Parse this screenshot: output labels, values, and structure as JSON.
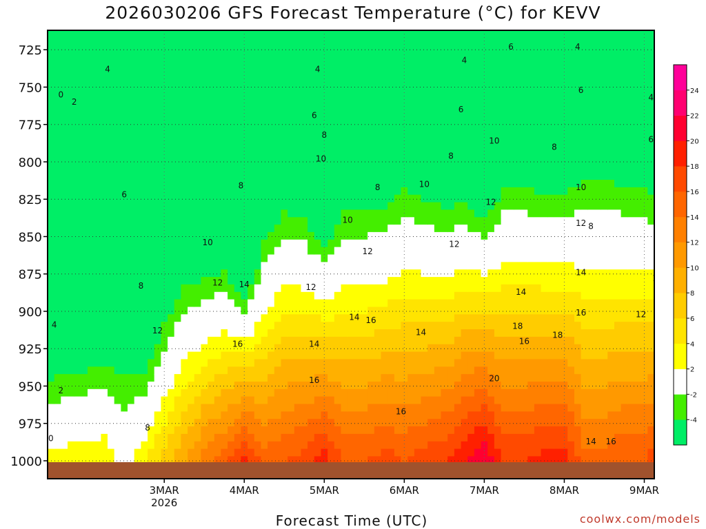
{
  "title": "2026030206 GFS Forecast Temperature (°C) for KEVV",
  "xlabel": "Forecast Time (UTC)",
  "credit": "coolwx.com/models",
  "chart_data": {
    "type": "heatmap",
    "title": "2026030206 GFS Forecast Temperature (°C) for KEVV",
    "xlabel": "Forecast Time (UTC)",
    "ylabel": "Pressure (hPa)",
    "xlim_hours": [
      -17,
      165
    ],
    "ylim": [
      1012,
      712
    ],
    "y_ticks": [
      725,
      750,
      775,
      800,
      825,
      850,
      875,
      900,
      925,
      950,
      975,
      1000
    ],
    "x_ticks": [
      {
        "label": "3MAR",
        "sub": "2026",
        "hour": 18
      },
      {
        "label": "4MAR",
        "sub": "",
        "hour": 42
      },
      {
        "label": "5MAR",
        "sub": "",
        "hour": 66
      },
      {
        "label": "6MAR",
        "sub": "",
        "hour": 90
      },
      {
        "label": "7MAR",
        "sub": "",
        "hour": 114
      },
      {
        "label": "8MAR",
        "sub": "",
        "hour": 138
      },
      {
        "label": "9MAR",
        "sub": "",
        "hour": 162
      }
    ],
    "colorbar": {
      "levels": [
        -6,
        -4,
        -2,
        2,
        4,
        6,
        8,
        10,
        12,
        14,
        16,
        18,
        20,
        22,
        24,
        26
      ],
      "labels": [
        "-4",
        "-2",
        "2",
        "4",
        "6",
        "8",
        "10",
        "12",
        "14",
        "16",
        "18",
        "20",
        "22",
        "24"
      ],
      "colors": [
        "#00ee66",
        "#44ee00",
        "#ffffff",
        "#ffff00",
        "#ffe400",
        "#ffcc00",
        "#ffb000",
        "#ff9900",
        "#ff8000",
        "#ff6600",
        "#ff4a00",
        "#ff2000",
        "#ff0030",
        "#ff0070",
        "#ff0099"
      ]
    },
    "surface_pressure_hpa": 1000,
    "profiles": [
      {
        "hour": -17,
        "surface": 3,
        "lapse": 1.3
      },
      {
        "hour": 0,
        "surface": 4,
        "lapse": 1.25
      },
      {
        "hour": 6,
        "surface": 1,
        "lapse": 0.9
      },
      {
        "hour": 12,
        "surface": 4,
        "lapse": 1.4
      },
      {
        "hour": 18,
        "surface": 7,
        "lapse": 1.2
      },
      {
        "hour": 24,
        "surface": 10,
        "lapse": 1.2
      },
      {
        "hour": 30,
        "surface": 13,
        "lapse": 1.4
      },
      {
        "hour": 36,
        "surface": 15,
        "lapse": 1.5
      },
      {
        "hour": 42,
        "surface": 19,
        "lapse": 2.1
      },
      {
        "hour": 48,
        "surface": 15,
        "lapse": 1.3
      },
      {
        "hour": 54,
        "surface": 16,
        "lapse": 1.2
      },
      {
        "hour": 60,
        "surface": 17,
        "lapse": 1.3
      },
      {
        "hour": 66,
        "surface": 19,
        "lapse": 1.6
      },
      {
        "hour": 72,
        "surface": 16,
        "lapse": 1.2
      },
      {
        "hour": 78,
        "surface": 16,
        "lapse": 1.2
      },
      {
        "hour": 84,
        "surface": 17,
        "lapse": 1.25
      },
      {
        "hour": 90,
        "surface": 16,
        "lapse": 1.1
      },
      {
        "hour": 96,
        "surface": 17,
        "lapse": 1.2
      },
      {
        "hour": 102,
        "surface": 18,
        "lapse": 1.3
      },
      {
        "hour": 108,
        "surface": 20,
        "lapse": 1.4
      },
      {
        "hour": 114,
        "surface": 22,
        "lapse": 1.6
      },
      {
        "hour": 120,
        "surface": 18,
        "lapse": 1.2
      },
      {
        "hour": 126,
        "surface": 18,
        "lapse": 1.2
      },
      {
        "hour": 132,
        "surface": 19,
        "lapse": 1.3
      },
      {
        "hour": 138,
        "surface": 19,
        "lapse": 1.3
      },
      {
        "hour": 144,
        "surface": 15,
        "lapse": 1.0
      },
      {
        "hour": 150,
        "surface": 15,
        "lapse": 1.0
      },
      {
        "hour": 156,
        "surface": 16,
        "lapse": 1.1
      },
      {
        "hour": 162,
        "surface": 16,
        "lapse": 1.1
      },
      {
        "hour": 165,
        "surface": 17,
        "lapse": 1.2
      }
    ],
    "contour_labels": [
      {
        "value": "0",
        "hour": -13,
        "p": 755
      },
      {
        "value": "2",
        "hour": -9,
        "p": 760
      },
      {
        "value": "4",
        "hour": 1,
        "p": 738
      },
      {
        "value": "2",
        "hour": -19,
        "p": 832
      },
      {
        "value": "4",
        "hour": -18,
        "p": 848
      },
      {
        "value": "6",
        "hour": 6,
        "p": 822
      },
      {
        "value": "4",
        "hour": -15,
        "p": 909
      },
      {
        "value": "2",
        "hour": -13,
        "p": 953
      },
      {
        "value": "0",
        "hour": -16,
        "p": 985
      },
      {
        "value": "8",
        "hour": 11,
        "p": 883
      },
      {
        "value": "8",
        "hour": 13,
        "p": 978
      },
      {
        "value": "12",
        "hour": 16,
        "p": 913
      },
      {
        "value": "10",
        "hour": 31,
        "p": 854
      },
      {
        "value": "12",
        "hour": 34,
        "p": 881
      },
      {
        "value": "14",
        "hour": 42,
        "p": 882
      },
      {
        "value": "16",
        "hour": 40,
        "p": 922
      },
      {
        "value": "8",
        "hour": 41,
        "p": 816
      },
      {
        "value": "4",
        "hour": 64,
        "p": 738
      },
      {
        "value": "6",
        "hour": 63,
        "p": 769
      },
      {
        "value": "8",
        "hour": 66,
        "p": 782
      },
      {
        "value": "10",
        "hour": 65,
        "p": 798
      },
      {
        "value": "10",
        "hour": 73,
        "p": 839
      },
      {
        "value": "12",
        "hour": 79,
        "p": 860
      },
      {
        "value": "12",
        "hour": 62,
        "p": 884
      },
      {
        "value": "14",
        "hour": 63,
        "p": 922
      },
      {
        "value": "16",
        "hour": 63,
        "p": 946
      },
      {
        "value": "14",
        "hour": 75,
        "p": 904
      },
      {
        "value": "16",
        "hour": 80,
        "p": 906
      },
      {
        "value": "14",
        "hour": 95,
        "p": 914
      },
      {
        "value": "16",
        "hour": 89,
        "p": 967
      },
      {
        "value": "8",
        "hour": 82,
        "p": 817
      },
      {
        "value": "10",
        "hour": 96,
        "p": 815
      },
      {
        "value": "6",
        "hour": 107,
        "p": 765
      },
      {
        "value": "8",
        "hour": 104,
        "p": 796
      },
      {
        "value": "12",
        "hour": 105,
        "p": 855
      },
      {
        "value": "4",
        "hour": 108,
        "p": 732
      },
      {
        "value": "6",
        "hour": 122,
        "p": 723
      },
      {
        "value": "10",
        "hour": 117,
        "p": 786
      },
      {
        "value": "12",
        "hour": 116,
        "p": 827
      },
      {
        "value": "14",
        "hour": 125,
        "p": 887
      },
      {
        "value": "18",
        "hour": 124,
        "p": 910
      },
      {
        "value": "16",
        "hour": 126,
        "p": 920
      },
      {
        "value": "20",
        "hour": 117,
        "p": 945
      },
      {
        "value": "18",
        "hour": 136,
        "p": 916
      },
      {
        "value": "8",
        "hour": 135,
        "p": 790
      },
      {
        "value": "4",
        "hour": 142,
        "p": 723
      },
      {
        "value": "6",
        "hour": 143,
        "p": 752
      },
      {
        "value": "10",
        "hour": 143,
        "p": 817
      },
      {
        "value": "12",
        "hour": 143,
        "p": 841
      },
      {
        "value": "8",
        "hour": 146,
        "p": 843
      },
      {
        "value": "14",
        "hour": 143,
        "p": 874
      },
      {
        "value": "16",
        "hour": 143,
        "p": 901
      },
      {
        "value": "14",
        "hour": 146,
        "p": 987
      },
      {
        "value": "16",
        "hour": 152,
        "p": 987
      },
      {
        "value": "2",
        "hour": 168,
        "p": 718
      },
      {
        "value": "4",
        "hour": 164,
        "p": 757
      },
      {
        "value": "6",
        "hour": 164,
        "p": 785
      },
      {
        "value": "8",
        "hour": 169,
        "p": 839
      },
      {
        "value": "10",
        "hour": 166,
        "p": 878
      },
      {
        "value": "12",
        "hour": 161,
        "p": 902
      },
      {
        "value": "14",
        "hour": 174,
        "p": 944
      }
    ]
  }
}
